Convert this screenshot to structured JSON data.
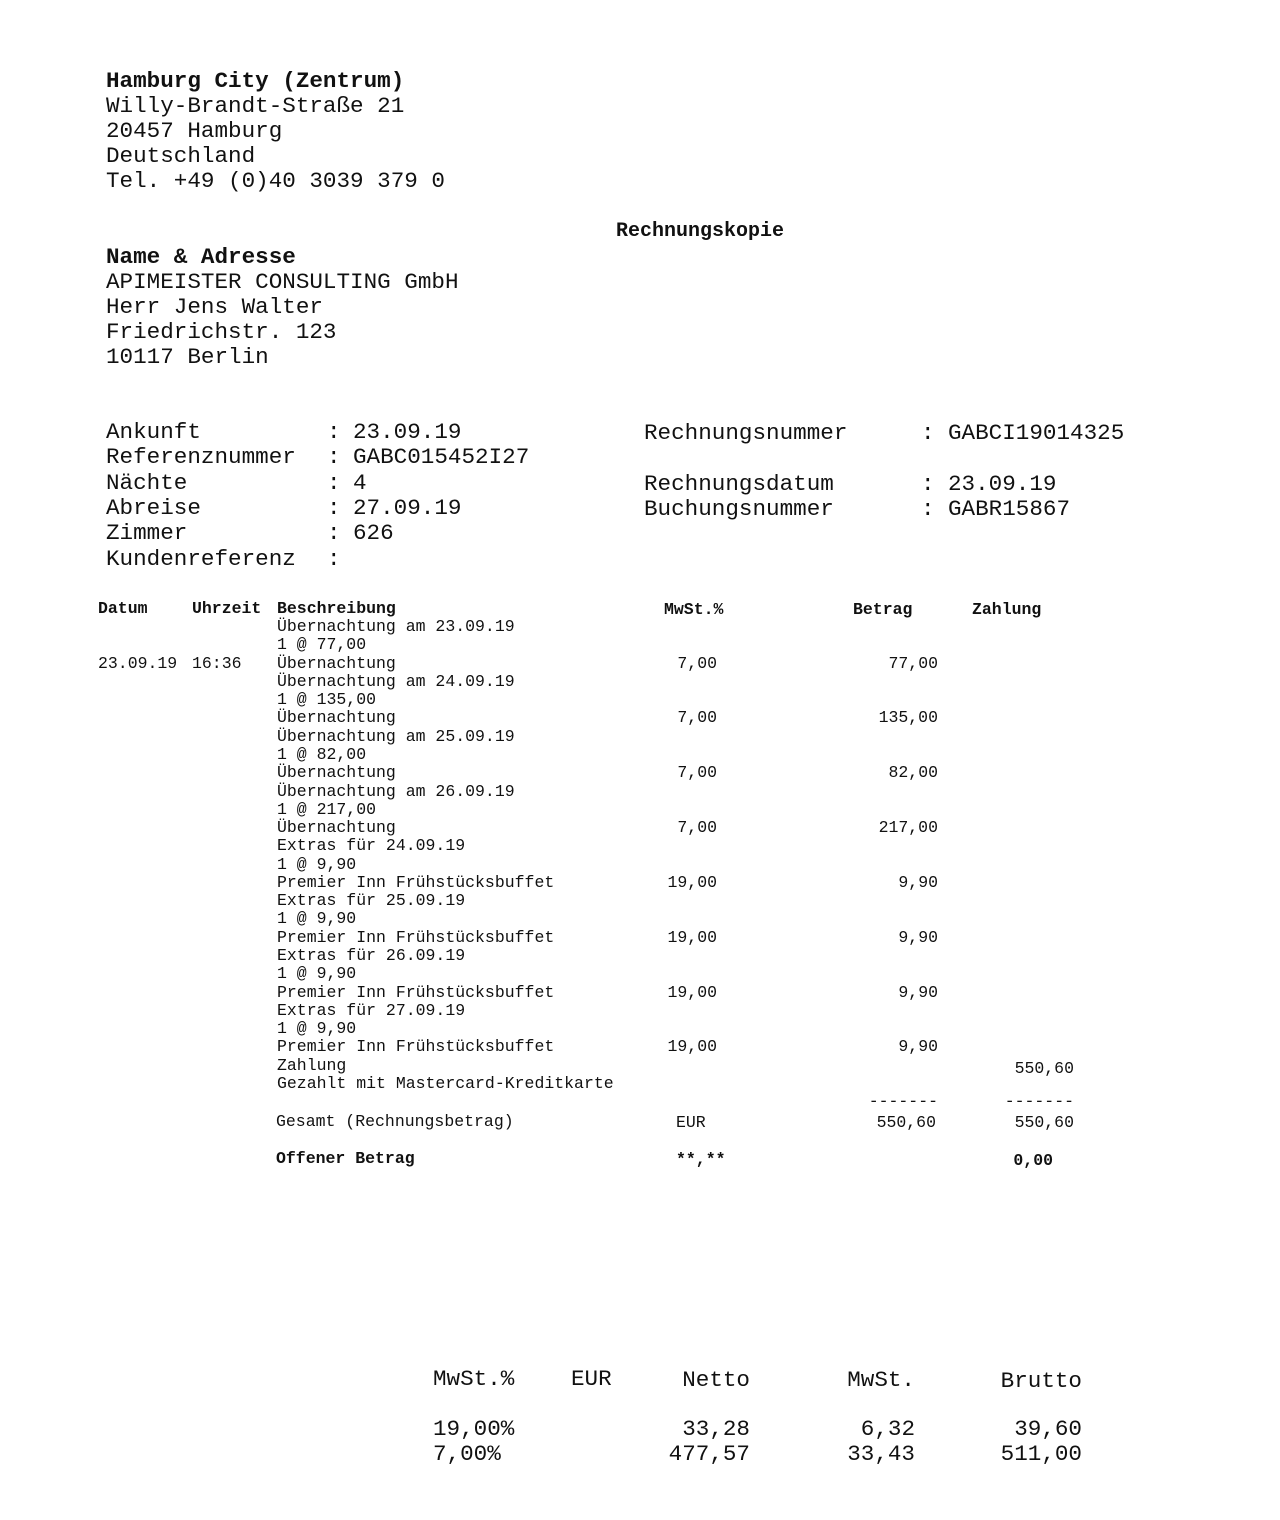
{
  "hotel": {
    "name": "Hamburg City (Zentrum)",
    "street": "Willy-Brandt-Straße 21",
    "city": "20457 Hamburg",
    "country": "Deutschland",
    "phone": "Tel. +49 (0)40 3039 379 0"
  },
  "doc_title": "Rechnungskopie",
  "customer": {
    "heading": "Name & Adresse",
    "company": "APIMEISTER CONSULTING GmbH",
    "person": "Herr Jens Walter",
    "street": "Friedrichstr. 123",
    "city": "10117 Berlin"
  },
  "info_left": [
    {
      "label": "Ankunft",
      "value": "23.09.19"
    },
    {
      "label": "Referenznummer",
      "value": "GABC015452I27"
    },
    {
      "label": "Nächte",
      "value": "4"
    },
    {
      "label": "Abreise",
      "value": "27.09.19"
    },
    {
      "label": "Zimmer",
      "value": "626"
    },
    {
      "label": "Kundenreferenz",
      "value": ""
    }
  ],
  "info_right": [
    {
      "label": "Rechnungsnummer",
      "value": "GABCI19014325"
    },
    {
      "label": "Rechnungsdatum",
      "value": "23.09.19"
    },
    {
      "label": "Buchungsnummer",
      "value": "GABR15867"
    }
  ],
  "table": {
    "headers": {
      "datum": "Datum",
      "uhrzeit": "Uhrzeit",
      "beschreibung": "Beschreibung",
      "mwst": "MwSt.%",
      "betrag": "Betrag",
      "zahlung": "Zahlung"
    },
    "lines": [
      {
        "beschreibung": "Übernachtung am 23.09.19"
      },
      {
        "beschreibung": "1 @ 77,00"
      },
      {
        "datum": "23.09.19",
        "uhrzeit": "16:36",
        "beschreibung": "Übernachtung",
        "mwst": "7,00",
        "betrag": "77,00"
      },
      {
        "beschreibung": "Übernachtung am 24.09.19"
      },
      {
        "beschreibung": "1 @ 135,00"
      },
      {
        "beschreibung": "Übernachtung",
        "mwst": "7,00",
        "betrag": "135,00"
      },
      {
        "beschreibung": "Übernachtung am 25.09.19"
      },
      {
        "beschreibung": "1 @ 82,00"
      },
      {
        "beschreibung": "Übernachtung",
        "mwst": "7,00",
        "betrag": "82,00"
      },
      {
        "beschreibung": "Übernachtung am 26.09.19"
      },
      {
        "beschreibung": "1 @ 217,00"
      },
      {
        "beschreibung": "Übernachtung",
        "mwst": "7,00",
        "betrag": "217,00"
      },
      {
        "beschreibung": "Extras für 24.09.19"
      },
      {
        "beschreibung": "1 @ 9,90"
      },
      {
        "beschreibung": "Premier Inn Frühstücksbuffet",
        "mwst": "19,00",
        "betrag": "9,90"
      },
      {
        "beschreibung": "Extras für 25.09.19"
      },
      {
        "beschreibung": "1 @ 9,90"
      },
      {
        "beschreibung": "Premier Inn Frühstücksbuffet",
        "mwst": "19,00",
        "betrag": "9,90"
      },
      {
        "beschreibung": "Extras für 26.09.19"
      },
      {
        "beschreibung": "1 @ 9,90"
      },
      {
        "beschreibung": "Premier Inn Frühstücksbuffet",
        "mwst": "19,00",
        "betrag": "9,90"
      },
      {
        "beschreibung": "Extras für 27.09.19"
      },
      {
        "beschreibung": "1 @ 9,90"
      },
      {
        "beschreibung": "Premier Inn Frühstücksbuffet",
        "mwst": "19,00",
        "betrag": "9,90"
      },
      {
        "beschreibung": "Zahlung",
        "zahlung": "550,60"
      },
      {
        "beschreibung": "Gezahlt mit Mastercard-Kreditkarte"
      }
    ],
    "separator": "-------",
    "total": {
      "label": "Gesamt (Rechnungsbetrag)",
      "currency": "EUR",
      "betrag": "550,60",
      "zahlung": "550,60"
    },
    "open": {
      "label": "Offener Betrag",
      "mwst": "**,**",
      "zahlung": "0,00"
    }
  },
  "tax_summary": {
    "headers": {
      "rate": "MwSt.%",
      "eur": "EUR",
      "netto": "Netto",
      "mwst": "MwSt.",
      "brutto": "Brutto"
    },
    "rows": [
      {
        "rate": "19,00%",
        "netto": "33,28",
        "mwst": "6,32",
        "brutto": "39,60"
      },
      {
        "rate": "7,00%",
        "netto": "477,57",
        "mwst": "33,43",
        "brutto": "511,00"
      }
    ]
  }
}
